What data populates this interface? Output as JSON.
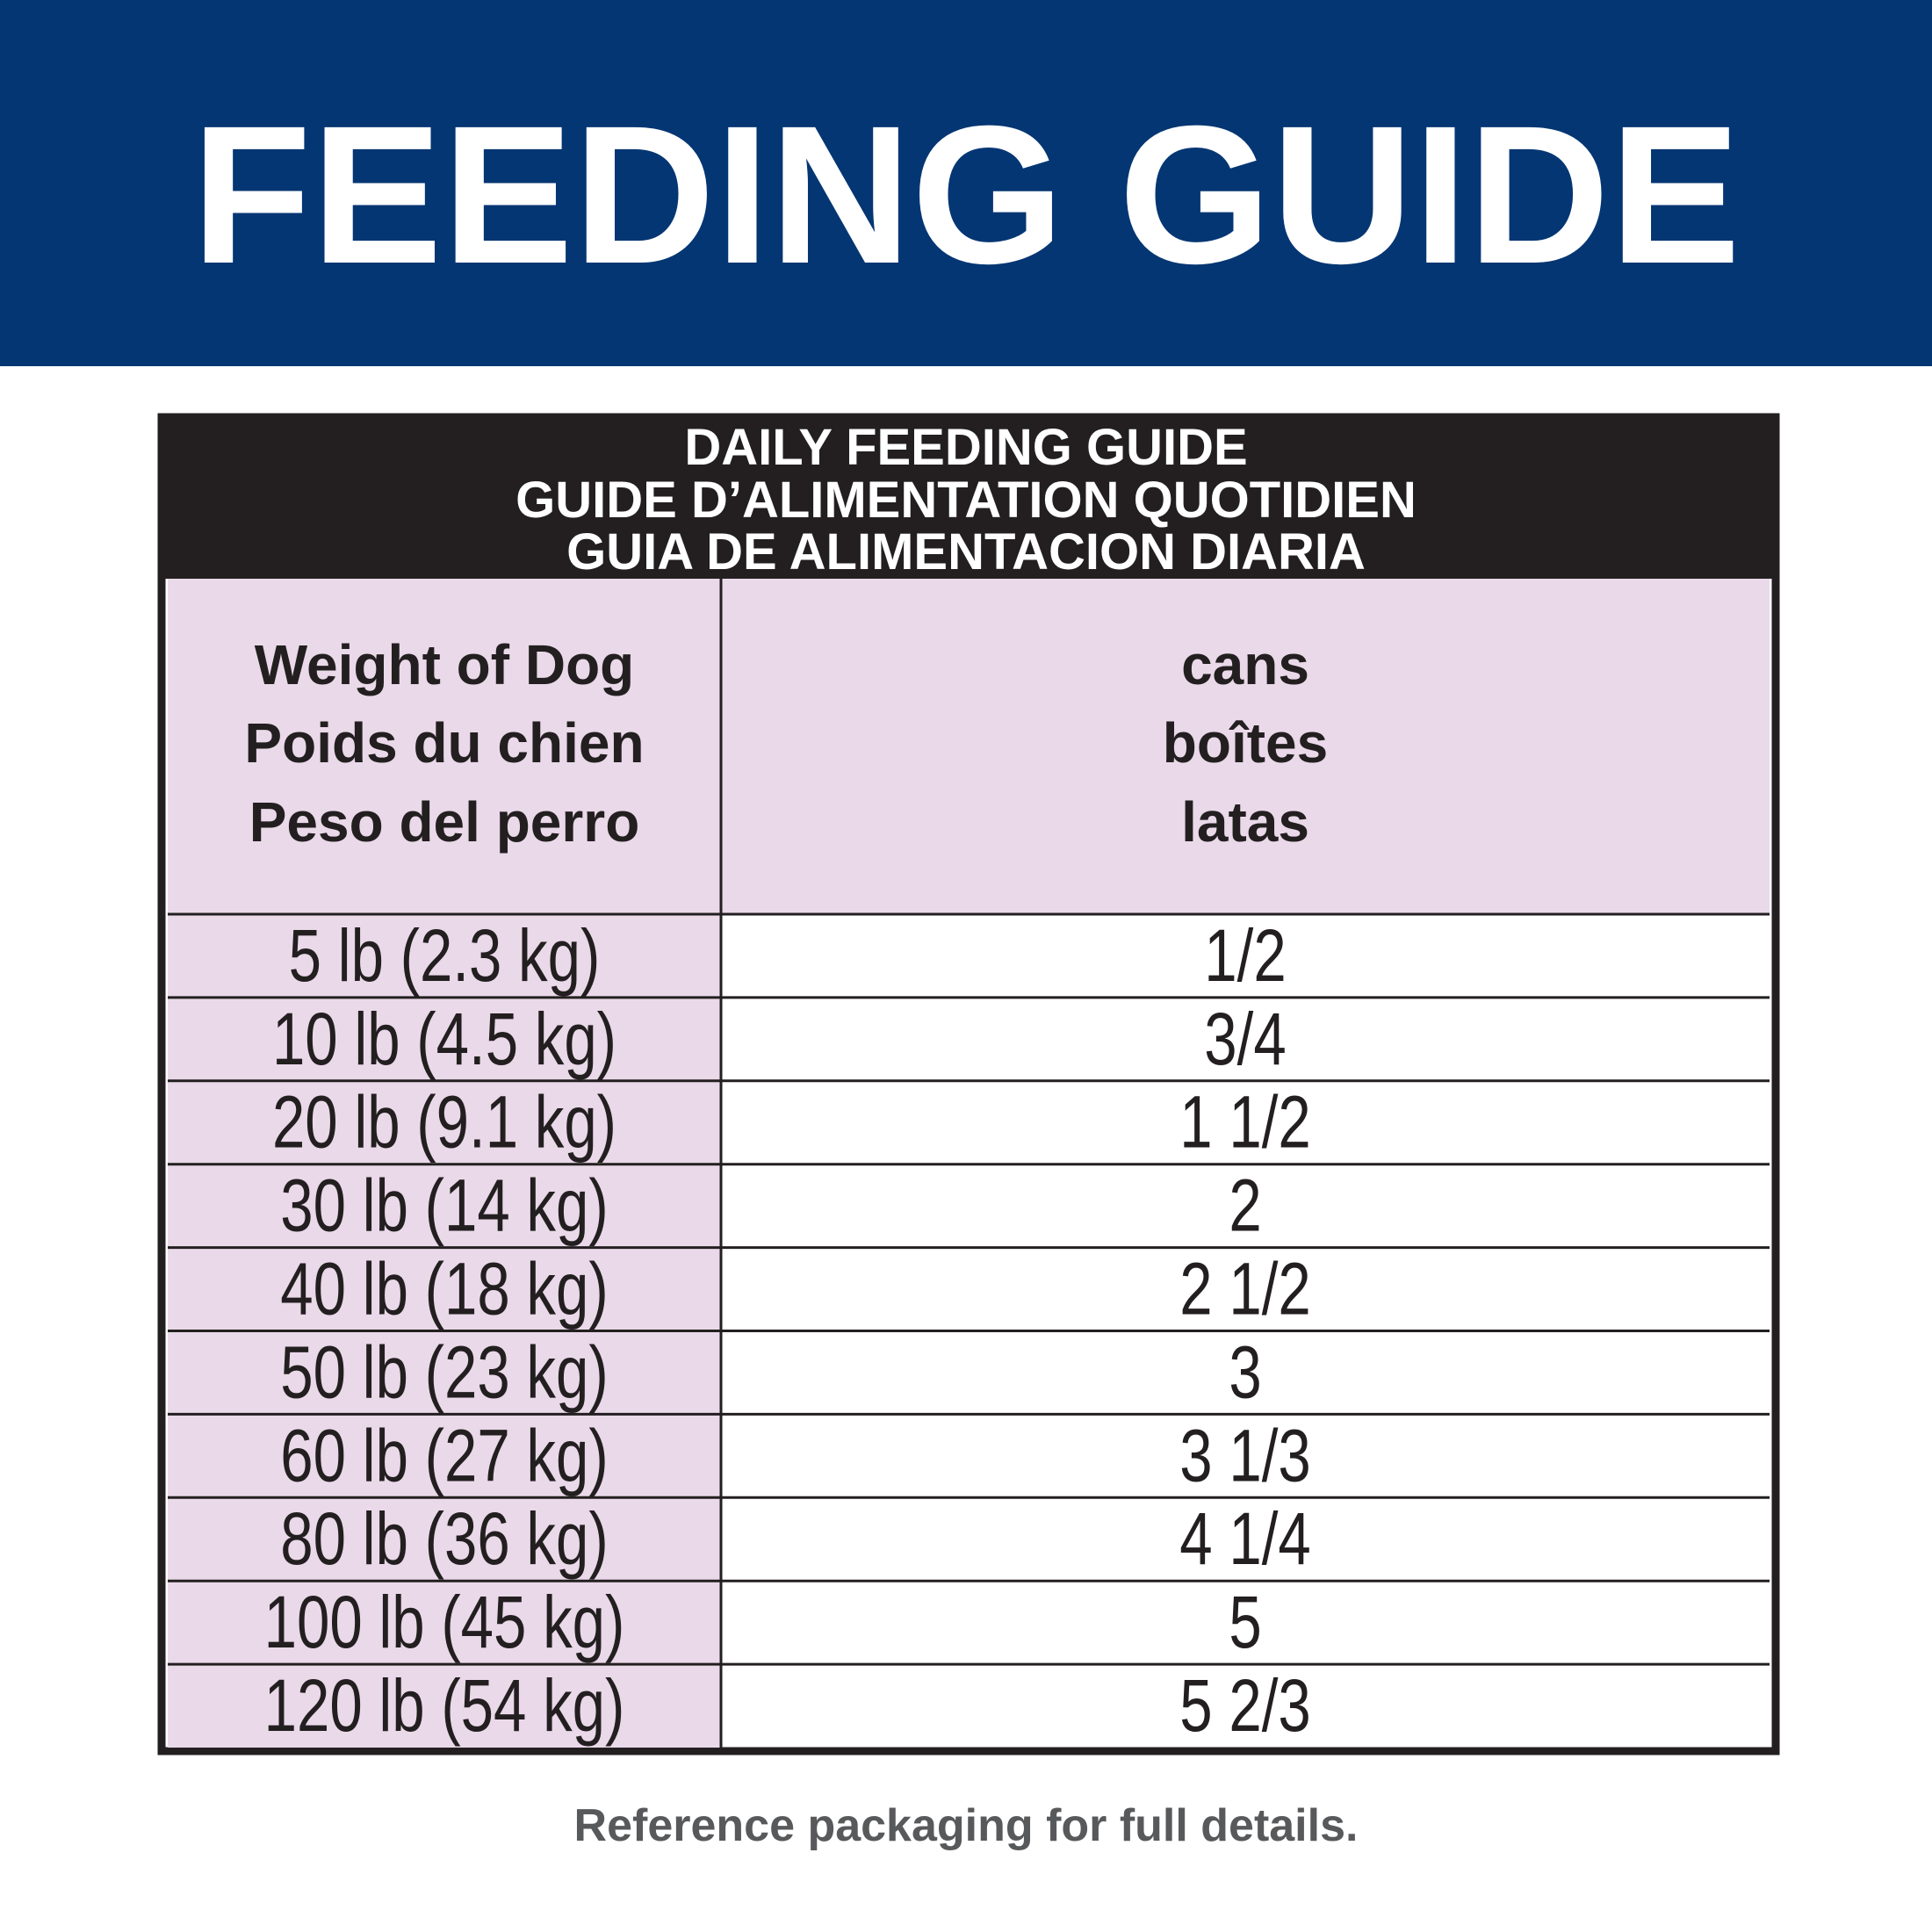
{
  "header": {
    "title": "FEEDING GUIDE"
  },
  "table": {
    "title": [
      "DAILY FEEDING GUIDE",
      "GUIDE D’ALIMENTATION QUOTIDIEN",
      "GUIA DE ALIMENTACION DIARIA"
    ],
    "columns": [
      [
        "Weight of Dog",
        "Poids du chien",
        "Peso del perro"
      ],
      [
        "cans",
        "boîtes",
        "latas"
      ]
    ],
    "rows": [
      [
        "5 lb (2.3 kg)",
        "1/2"
      ],
      [
        "10 lb (4.5 kg)",
        "3/4"
      ],
      [
        "20 lb (9.1 kg)",
        "1 1/2"
      ],
      [
        "30 lb (14 kg)",
        "2"
      ],
      [
        "40 lb (18 kg)",
        "2 1/2"
      ],
      [
        "50 lb (23 kg)",
        "3"
      ],
      [
        "60 lb (27 kg)",
        "3 1/3"
      ],
      [
        "80 lb (36 kg)",
        "4 1/4"
      ],
      [
        "100 lb (45 kg)",
        "5"
      ],
      [
        "120 lb (54 kg)",
        "5 2/3"
      ]
    ]
  },
  "footer": "Reference packaging for full details."
}
